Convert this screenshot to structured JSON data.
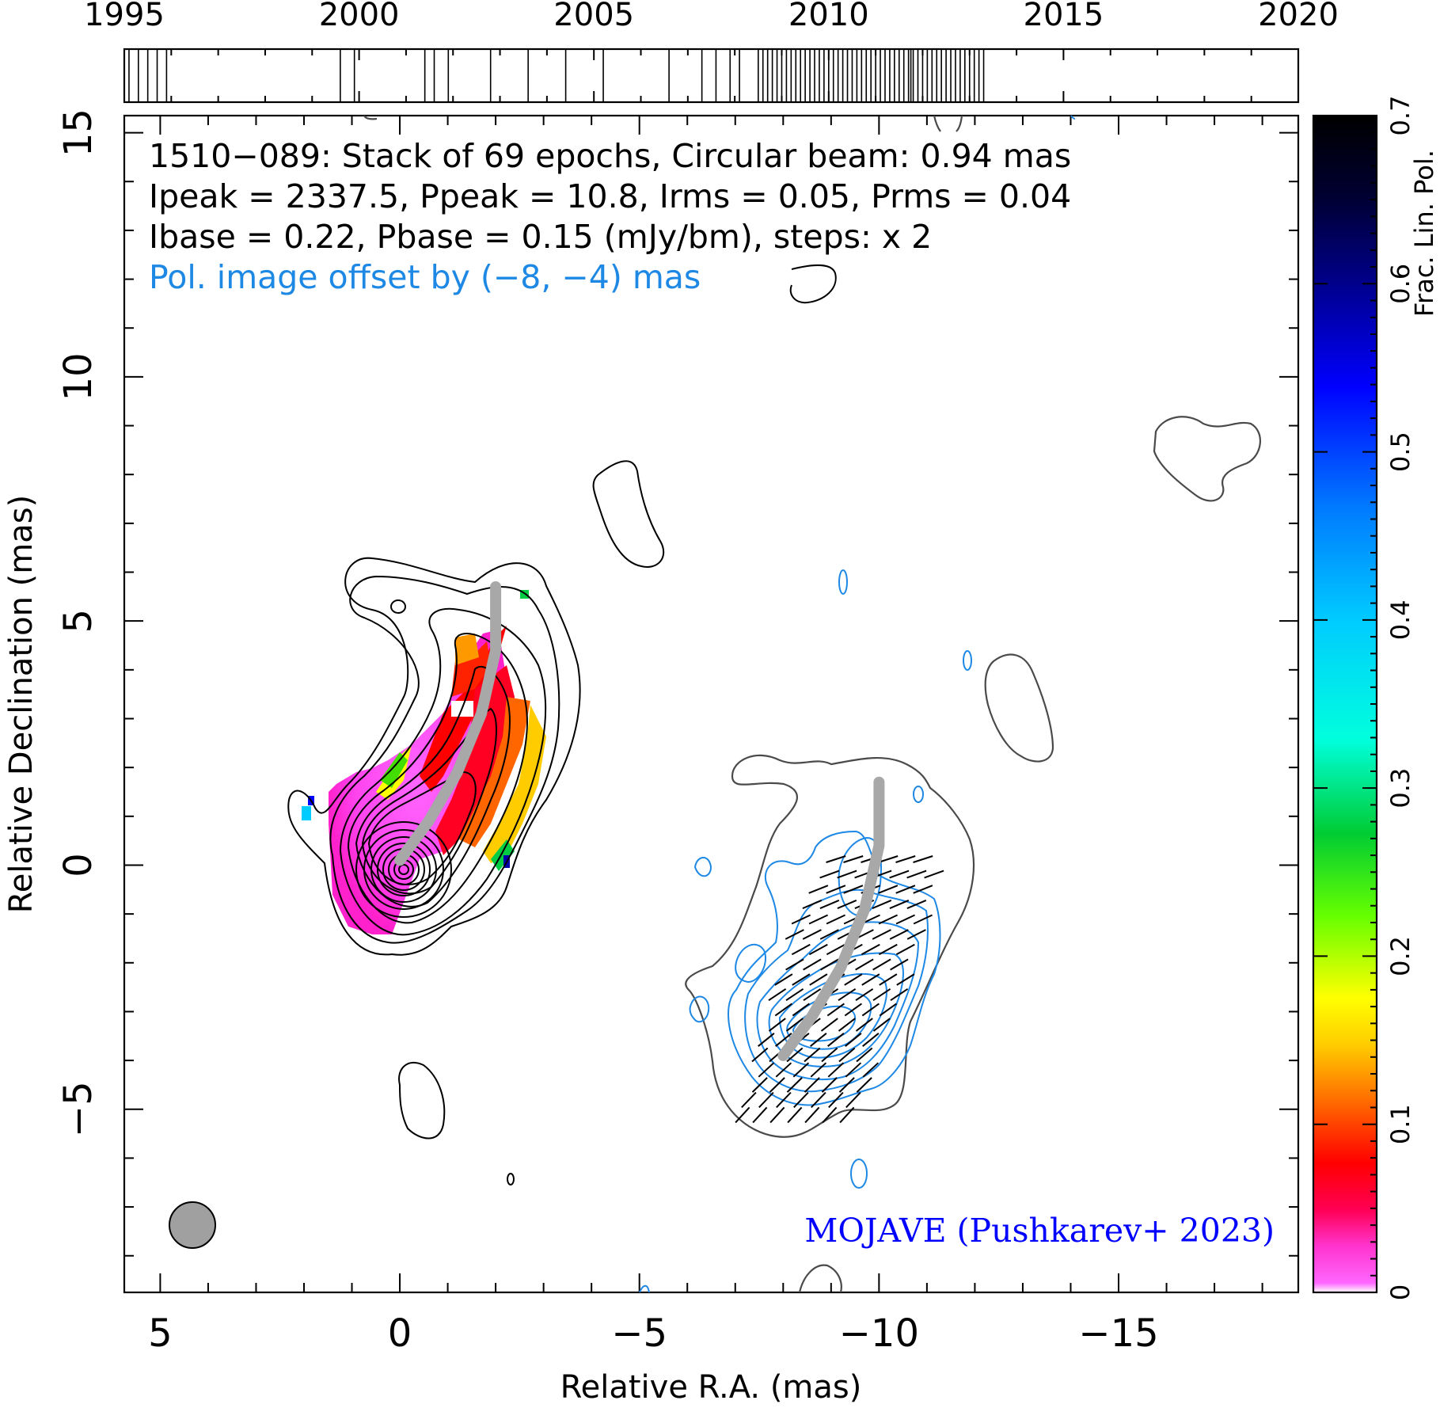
{
  "header": {
    "line1": "1510−089: Stack of 69 epochs, Circular beam: 0.94 mas",
    "line2": "Ipeak = 2337.5, Ppeak = 10.8, Irms = 0.05, Prms = 0.04",
    "line3": "Ibase = 0.22, Pbase = 0.15 (mJy/bm), steps: x 2",
    "line4": "Pol. image offset by (−8, −4) mas",
    "credit": "MOJAVE (Pushkarev+ 2023)"
  },
  "colors": {
    "total_intensity_contours": "#000000",
    "lowest_contour": "#4a4a4a",
    "polarization_contours": "#1e88e5",
    "ridge_line": "#a8a8a8",
    "beam": "#a0a0a0",
    "offset_text": "#1e88e5",
    "credit_text": "#0000ff"
  },
  "chart_data": [
    {
      "type": "scatter",
      "subtype": "epoch-timeline",
      "xlim": [
        1995,
        2020
      ],
      "tick_labels": [
        "1995",
        "2000",
        "2005",
        "2010",
        "2015",
        "2020"
      ],
      "epochs": [
        1995.1,
        1995.3,
        1995.5,
        1995.7,
        1995.9,
        1999.6,
        1999.9,
        2001.4,
        2001.6,
        2001.9,
        2002.8,
        2003.6,
        2004.4,
        2005.2,
        2006.6,
        2007.3,
        2007.6,
        2007.9,
        2008.1,
        2008.5,
        2008.6,
        2008.7,
        2008.8,
        2008.9,
        2009.0,
        2009.1,
        2009.2,
        2009.3,
        2009.4,
        2009.5,
        2009.6,
        2009.7,
        2009.8,
        2009.9,
        2010.0,
        2010.1,
        2010.2,
        2010.3,
        2010.4,
        2010.5,
        2010.6,
        2010.7,
        2010.8,
        2010.9,
        2011.0,
        2011.1,
        2011.2,
        2011.3,
        2011.4,
        2011.5,
        2011.6,
        2011.7,
        2011.75,
        2011.8,
        2011.9,
        2012.0,
        2012.1,
        2012.2,
        2012.3,
        2012.4,
        2012.5,
        2012.6,
        2012.7,
        2012.8,
        2012.9,
        2013.0,
        2013.1,
        2013.2,
        2013.3
      ]
    },
    {
      "type": "heatmap",
      "subtype": "vlbi-map",
      "xlabel": "Relative R.A. (mas)",
      "ylabel": "Relative Declination (mas)",
      "xlim": [
        5.75,
        -18.75
      ],
      "ylim": [
        -8.75,
        15.35
      ],
      "xticks": [
        5,
        0,
        -5,
        -10,
        -15
      ],
      "yticks": [
        -5,
        0,
        5,
        10,
        15
      ],
      "xtick_labels": [
        "5",
        "0",
        "−5",
        "−10",
        "−15"
      ],
      "ytick_labels": [
        "−5",
        "0",
        "5",
        "10",
        "15"
      ],
      "beam": {
        "ra": 4.3,
        "dec": -7.0,
        "diameter_mas": 0.94
      },
      "ridge_line_total": [
        [
          0.0,
          0.1
        ],
        [
          -0.6,
          0.9
        ],
        [
          -1.2,
          1.9
        ],
        [
          -1.7,
          3.1
        ],
        [
          -2.0,
          4.4
        ],
        [
          -2.0,
          5.7
        ]
      ],
      "ridge_line_pol": [
        [
          -8.0,
          -3.9
        ],
        [
          -8.6,
          -3.1
        ],
        [
          -9.2,
          -2.1
        ],
        [
          -9.7,
          -0.9
        ],
        [
          -10.0,
          0.4
        ],
        [
          -10.0,
          1.7
        ]
      ],
      "frac_pol_patches": [
        {
          "ra": 0.2,
          "dec": -0.3,
          "value": 0.01
        },
        {
          "ra": -0.3,
          "dec": 0.6,
          "value": 0.015
        },
        {
          "ra": -1.0,
          "dec": 1.6,
          "value": 0.03
        },
        {
          "ra": -1.6,
          "dec": 3.3,
          "value": 0.045
        },
        {
          "ra": -2.2,
          "dec": 2.6,
          "value": 0.07
        },
        {
          "ra": -2.7,
          "dec": 2.3,
          "value": 0.12
        },
        {
          "ra": -3.0,
          "dec": 1.6,
          "value": 0.17
        },
        {
          "ra": -1.5,
          "dec": 4.2,
          "value": 0.11
        },
        {
          "ra": 1.6,
          "dec": 1.7,
          "value": 0.17
        },
        {
          "ra": 1.2,
          "dec": 2.3,
          "value": 0.23
        },
        {
          "ra": -2.1,
          "dec": -0.7,
          "value": 0.2
        },
        {
          "ra": -2.6,
          "dec": 0.2,
          "value": 0.3
        },
        {
          "ra": 1.9,
          "dec": 0.8,
          "value": 0.41
        },
        {
          "ra": 1.8,
          "dec": 1.3,
          "value": 0.62
        }
      ]
    },
    {
      "type": "heatmap",
      "subtype": "colorbar",
      "label": "Frac. Lin. Pol.",
      "range": [
        0,
        0.7
      ],
      "tick_labels": [
        "0",
        "0.1",
        "0.2",
        "0.3",
        "0.4",
        "0.5",
        "0.6",
        "0.7"
      ],
      "ticks": [
        0,
        0.1,
        0.2,
        0.3,
        0.4,
        0.5,
        0.6,
        0.7
      ]
    }
  ]
}
